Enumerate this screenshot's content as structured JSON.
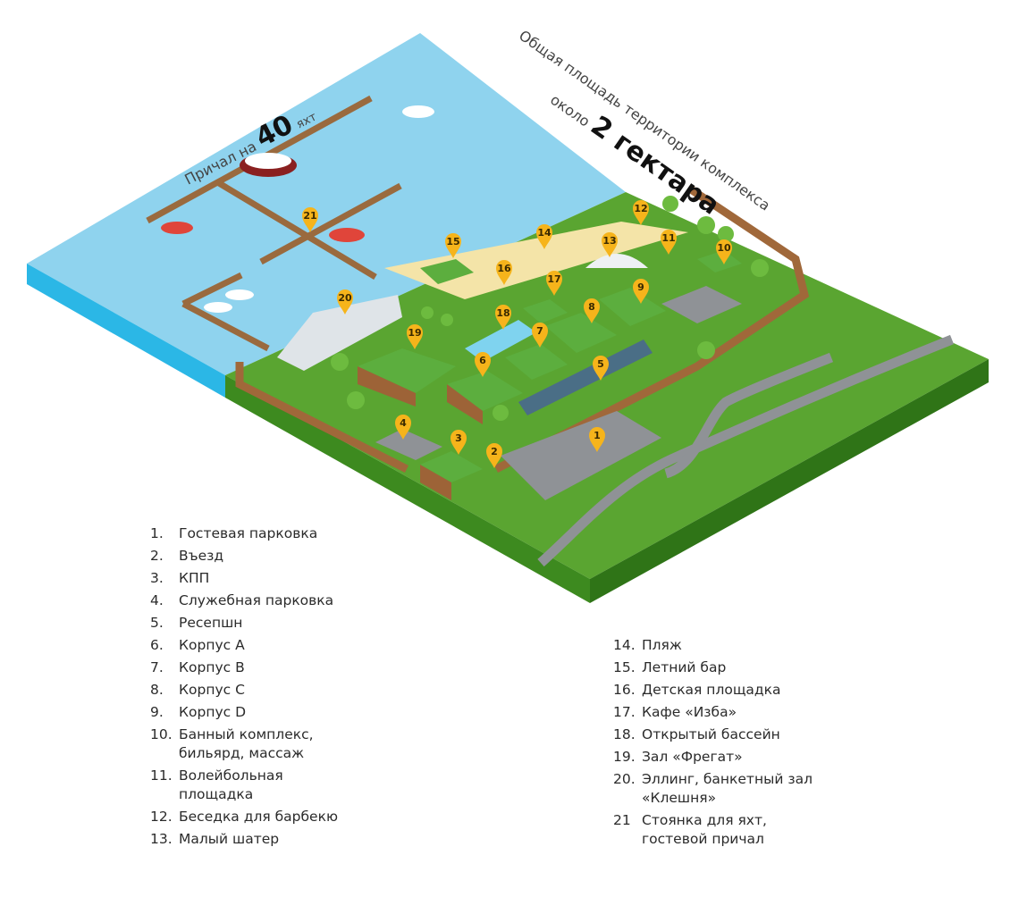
{
  "captions": {
    "berth_prefix": "Причал на",
    "berth_number": "40",
    "berth_suffix": "яхт",
    "area_line1": "Общая площадь территории комплекса",
    "area_prefix": "около",
    "area_value": "2 гектара"
  },
  "markers": [
    "1",
    "2",
    "3",
    "4",
    "5",
    "6",
    "7",
    "8",
    "9",
    "10",
    "11",
    "12",
    "13",
    "14",
    "15",
    "16",
    "17",
    "18",
    "19",
    "20",
    "21"
  ],
  "legend_left": [
    {
      "num": "1.",
      "text": "Гостевая парковка"
    },
    {
      "num": "2.",
      "text": "Въезд"
    },
    {
      "num": "3.",
      "text": "КПП"
    },
    {
      "num": "4.",
      "text": "Служебная парковка"
    },
    {
      "num": "5.",
      "text": "Ресепшн"
    },
    {
      "num": "6.",
      "text": "Корпус А"
    },
    {
      "num": "7.",
      "text": "Корпус В"
    },
    {
      "num": "8.",
      "text": "Корпус С"
    },
    {
      "num": "9.",
      "text": "Корпус D"
    },
    {
      "num": "10.",
      "text": "Банный комплекс,\nбильярд, массаж"
    },
    {
      "num": "11.",
      "text": "Волейбольная\nплощадка"
    },
    {
      "num": "12.",
      "text": "Беседка для барбекю"
    },
    {
      "num": "13.",
      "text": "Малый шатер"
    }
  ],
  "legend_right": [
    {
      "num": "14.",
      "text": "Пляж"
    },
    {
      "num": "15.",
      "text": "Летний бар"
    },
    {
      "num": "16.",
      "text": "Детская площадка"
    },
    {
      "num": "17.",
      "text": "Кафе «Изба»"
    },
    {
      "num": "18.",
      "text": "Открытый бассейн"
    },
    {
      "num": "19.",
      "text": "Зал «Фрегат»"
    },
    {
      "num": "20.",
      "text": "Эллинг, банкетный зал\n«Клешня»"
    },
    {
      "num": "21",
      "text": "Стоянка для яхт,\nгостевой причал"
    }
  ],
  "colors": {
    "water": "#8fd3ee",
    "water_side": "#2bb7e6",
    "grass": "#5aa531",
    "grass_side": "#3d8a1f",
    "road": "#8f9296",
    "sand": "#f4e4a8",
    "pier": "#9a6a3e",
    "roof": "#5cae3e",
    "wall": "#9d6337",
    "marker": "#f6b41b"
  }
}
